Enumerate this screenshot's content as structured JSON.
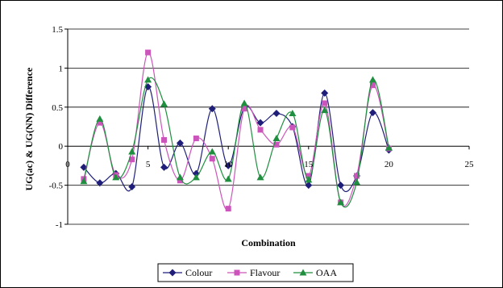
{
  "chart_data": {
    "type": "line",
    "title": "",
    "xlabel": "Combination",
    "ylabel": "UG(ac) & UG(NN)   Difference",
    "xlim": [
      0,
      25
    ],
    "ylim": [
      -1,
      1.5
    ],
    "x_ticks": [
      "0",
      "5",
      "10",
      "15",
      "20",
      "25"
    ],
    "y_ticks": [
      "1.5",
      "1",
      "0.5",
      "0",
      "-0.5",
      "-1"
    ],
    "grid": "horizontal",
    "legend_position": "bottom",
    "series": [
      {
        "name": "Colour",
        "color": "#1f1f7a",
        "marker": "diamond",
        "x": [
          1,
          2,
          3,
          4,
          5,
          6,
          7,
          8,
          9,
          10,
          11,
          12,
          13,
          14,
          15,
          16,
          17,
          18,
          19,
          20
        ],
        "y": [
          -0.27,
          -0.47,
          -0.35,
          -0.52,
          0.76,
          -0.27,
          0.04,
          -0.35,
          0.48,
          -0.25,
          0.5,
          0.3,
          0.42,
          0.25,
          -0.5,
          0.68,
          -0.5,
          -0.38,
          0.43,
          -0.05
        ]
      },
      {
        "name": "Flavour",
        "color": "#cc55bb",
        "marker": "square",
        "x": [
          1,
          2,
          3,
          4,
          5,
          6,
          7,
          8,
          9,
          10,
          11,
          12,
          13,
          14,
          15,
          16,
          17,
          18,
          19,
          20
        ],
        "y": [
          -0.42,
          0.3,
          -0.37,
          -0.17,
          1.2,
          0.08,
          -0.44,
          0.1,
          -0.16,
          -0.8,
          0.48,
          0.21,
          0.02,
          0.24,
          -0.38,
          0.55,
          -0.72,
          -0.38,
          0.78,
          -0.03
        ]
      },
      {
        "name": "OAA",
        "color": "#1f8f3f",
        "marker": "triangle",
        "x": [
          1,
          2,
          3,
          4,
          5,
          6,
          7,
          8,
          9,
          10,
          11,
          12,
          13,
          14,
          15,
          16,
          17,
          18,
          19,
          20
        ],
        "y": [
          -0.45,
          0.35,
          -0.4,
          -0.07,
          0.85,
          0.54,
          -0.4,
          -0.4,
          -0.07,
          -0.42,
          0.55,
          -0.4,
          0.1,
          0.42,
          -0.43,
          0.46,
          -0.72,
          -0.46,
          0.85,
          -0.02
        ]
      }
    ]
  }
}
